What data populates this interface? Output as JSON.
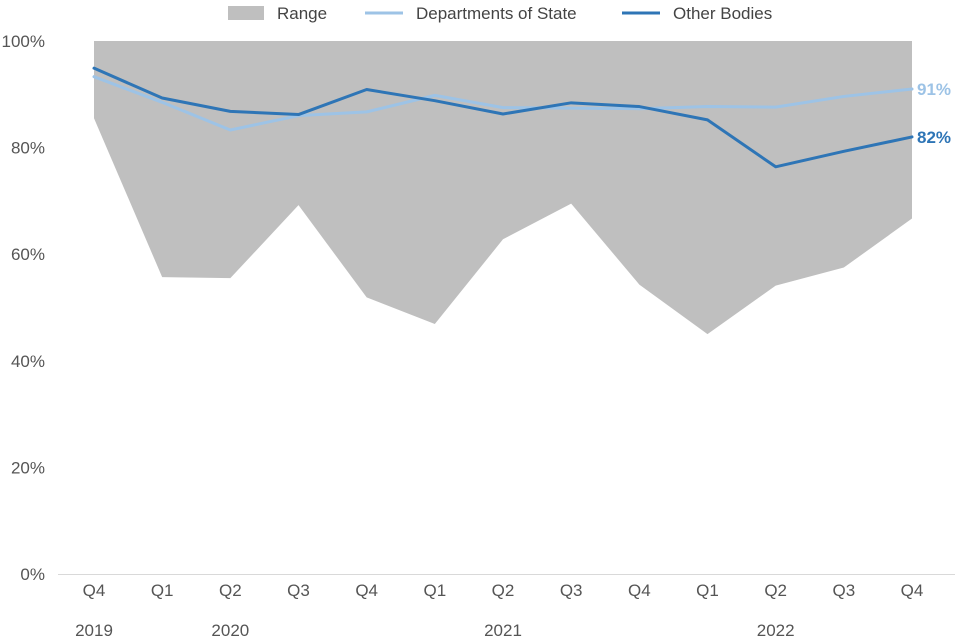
{
  "chart_data": {
    "type": "line",
    "title": "",
    "xlabel": "",
    "ylabel": "",
    "ylim": [
      0,
      100
    ],
    "y_ticks": [
      0,
      20,
      40,
      60,
      80,
      100
    ],
    "y_tick_suffix": "%",
    "quarters": [
      "Q4",
      "Q1",
      "Q2",
      "Q3",
      "Q4",
      "Q1",
      "Q2",
      "Q3",
      "Q4",
      "Q1",
      "Q2",
      "Q3",
      "Q4"
    ],
    "year_labels": [
      {
        "label": "2019",
        "index": 0
      },
      {
        "label": "2020",
        "index": 2
      },
      {
        "label": "2021",
        "index": 6
      },
      {
        "label": "2022",
        "index": 10
      }
    ],
    "range": {
      "name": "Range",
      "color": "#bfbfbf",
      "high": [
        100,
        100,
        100,
        100,
        100,
        100,
        100,
        100,
        100,
        100,
        100,
        100,
        100
      ],
      "low": [
        85.5,
        55.7,
        55.5,
        69.2,
        51.9,
        46.9,
        62.8,
        69.5,
        54.3,
        45.0,
        54.1,
        57.5,
        66.7
      ]
    },
    "series": [
      {
        "name": "Departments of State",
        "color": "#9dc3e6",
        "values": [
          93.3,
          88.5,
          83.3,
          86.0,
          86.7,
          89.8,
          87.5,
          87.4,
          87.3,
          87.7,
          87.6,
          89.6,
          91.0
        ],
        "end_label": "91%"
      },
      {
        "name": "Other Bodies",
        "color": "#2e75b6",
        "values": [
          94.9,
          89.3,
          86.8,
          86.2,
          90.9,
          88.8,
          86.3,
          88.4,
          87.7,
          85.2,
          76.4,
          79.3,
          82.0
        ],
        "end_label": "82%"
      }
    ],
    "legend": [
      "Range",
      "Departments of State",
      "Other Bodies"
    ],
    "legend_position": "top"
  }
}
